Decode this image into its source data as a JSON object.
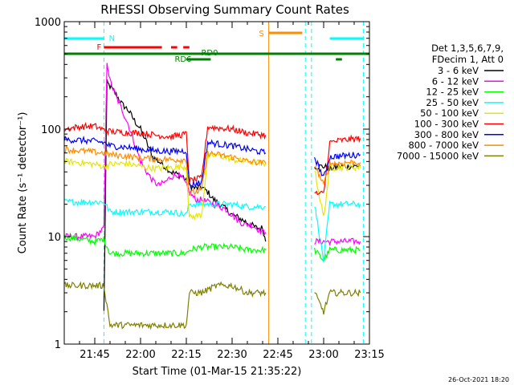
{
  "chart_data": {
    "type": "line",
    "title": "RHESSI Observing Summary Count Rates",
    "xlabel": "Start Time (01-Mar-15 21:35:22)",
    "ylabel": "Count Rate (s⁻¹ detector⁻¹)",
    "y_scale": "log",
    "ylim": [
      1,
      1000
    ],
    "xlim": [
      "21:35",
      "23:15"
    ],
    "xticks": [
      "21:45",
      "22:00",
      "22:15",
      "22:30",
      "22:45",
      "23:00",
      "23:15"
    ],
    "yticks": [
      "1",
      "10",
      "100",
      "1000"
    ],
    "footer": "26-Oct-2021 18:20",
    "legend": {
      "placement": "right",
      "header": [
        "Det 1,3,5,6,7,9,",
        "FDecim 1, Att 0"
      ],
      "entries": [
        {
          "label": "3 - 6 keV",
          "color": "#000000"
        },
        {
          "label": "6 - 12 keV",
          "color": "#ff00ff"
        },
        {
          "label": "12 - 25 keV",
          "color": "#00ff00"
        },
        {
          "label": "25 - 50 keV",
          "color": "#00ffff"
        },
        {
          "label": "50 - 100 keV",
          "color": "#e6e600"
        },
        {
          "label": "100 - 300 keV",
          "color": "#ff0000"
        },
        {
          "label": "300 - 800 keV",
          "color": "#0000ff"
        },
        {
          "label": "800 - 7000 keV",
          "color": "#ff8c00"
        },
        {
          "label": "7000 - 15000 keV",
          "color": "#808000"
        }
      ]
    },
    "flag_bars": [
      {
        "label": "N",
        "color": "#00ffff",
        "segments": [
          [
            "21:35",
            "21:48"
          ],
          [
            "23:02",
            "23:13"
          ]
        ]
      },
      {
        "label": "F",
        "color": "#ff0000",
        "segments": [
          [
            "21:48",
            "22:07"
          ],
          [
            "22:10",
            "22:12"
          ],
          [
            "22:14",
            "22:16"
          ]
        ]
      },
      {
        "label": "S",
        "color": "#ff8c00",
        "segments": [
          [
            "22:42",
            "22:53"
          ]
        ]
      },
      {
        "label": "RD0",
        "color": "#008000",
        "segments": [
          [
            "21:35",
            "23:15"
          ]
        ]
      },
      {
        "label": "RD6",
        "color": "#008000",
        "segments": [
          [
            "22:15",
            "22:23"
          ],
          [
            "23:04",
            "23:06"
          ]
        ]
      }
    ],
    "vertical_markers": [
      {
        "time": "21:35",
        "color": "#00ffff",
        "style": "dashed"
      },
      {
        "time": "21:48",
        "color": "#00ffff",
        "style": "dashed"
      },
      {
        "time": "22:42",
        "color": "#ff8c00",
        "style": "solid"
      },
      {
        "time": "22:54",
        "color": "#00ffff",
        "style": "dashed"
      },
      {
        "time": "22:56",
        "color": "#00ffff",
        "style": "dashed"
      },
      {
        "time": "23:13",
        "color": "#00ffff",
        "style": "dashed"
      }
    ],
    "gap": [
      "22:42",
      "22:56"
    ],
    "series": [
      {
        "name": "3 - 6 keV",
        "color": "#000000",
        "x": [
          "21:48",
          "21:49",
          "21:50",
          "21:52",
          "21:54",
          "21:56",
          "21:58",
          "22:00",
          "22:02",
          "22:04",
          "22:06",
          "22:08",
          "22:10",
          "22:12",
          "22:14",
          "22:16",
          "22:18",
          "22:20",
          "22:22",
          "22:24",
          "22:26",
          "22:28",
          "22:30",
          "22:32",
          "22:34",
          "22:36",
          "22:38",
          "22:40",
          "22:41",
          "22:57",
          "23:00",
          "23:02",
          "23:04",
          "23:06",
          "23:08",
          "23:10",
          "23:12"
        ],
        "y": [
          2,
          270,
          250,
          210,
          170,
          150,
          120,
          100,
          75,
          55,
          50,
          45,
          40,
          38,
          36,
          30,
          28,
          29,
          26,
          22,
          20,
          18,
          16,
          15,
          14,
          13,
          12,
          12,
          9,
          45,
          45,
          43,
          44,
          45,
          45,
          45,
          46
        ]
      },
      {
        "name": "6 - 12 keV",
        "color": "#ff00ff",
        "x": [
          "21:35",
          "21:40",
          "21:45",
          "21:48",
          "21:49",
          "21:50",
          "21:52",
          "21:54",
          "21:56",
          "21:58",
          "22:00",
          "22:02",
          "22:04",
          "22:06",
          "22:08",
          "22:10",
          "22:12",
          "22:14",
          "22:16",
          "22:18",
          "22:20",
          "22:22",
          "22:24",
          "22:26",
          "22:28",
          "22:30",
          "22:32",
          "22:34",
          "22:36",
          "22:38",
          "22:40",
          "22:41",
          "22:57",
          "23:00",
          "23:02",
          "23:04",
          "23:06",
          "23:08",
          "23:10",
          "23:12"
        ],
        "y": [
          10,
          10,
          10,
          12,
          430,
          280,
          200,
          150,
          110,
          75,
          50,
          40,
          33,
          30,
          32,
          36,
          38,
          34,
          26,
          22,
          22,
          21,
          20,
          19,
          18,
          16,
          14,
          13,
          13,
          12,
          11,
          11,
          9,
          9,
          9,
          9,
          9,
          9,
          9,
          9
        ]
      },
      {
        "name": "12 - 25 keV",
        "color": "#00ff00",
        "x": [
          "21:35",
          "21:40",
          "21:45",
          "21:48",
          "21:50",
          "21:55",
          "22:00",
          "22:05",
          "22:10",
          "22:15",
          "22:16",
          "22:20",
          "22:25",
          "22:30",
          "22:35",
          "22:41",
          "22:57",
          "23:00",
          "23:02",
          "23:05",
          "23:08",
          "23:12"
        ],
        "y": [
          10,
          9.5,
          9,
          9.5,
          7,
          7,
          7,
          7,
          7,
          7,
          7.5,
          8,
          8,
          8,
          7.5,
          7.5,
          7.5,
          6,
          7.5,
          7.5,
          7.5,
          7.5
        ]
      },
      {
        "name": "25 - 50 keV",
        "color": "#00ffff",
        "x": [
          "21:35",
          "21:40",
          "21:45",
          "21:48",
          "21:50",
          "21:55",
          "22:00",
          "22:05",
          "22:10",
          "22:15",
          "22:16",
          "22:20",
          "22:25",
          "22:30",
          "22:35",
          "22:41",
          "22:57",
          "23:00",
          "23:02",
          "23:05",
          "23:08",
          "23:12"
        ],
        "y": [
          21,
          21,
          21,
          21,
          17,
          17,
          17,
          17,
          17,
          16,
          20,
          20,
          20,
          20,
          19,
          19,
          20,
          6,
          20,
          20,
          20,
          20
        ]
      },
      {
        "name": "50 - 100 keV",
        "color": "#e6e600",
        "x": [
          "21:35",
          "21:40",
          "21:45",
          "21:48",
          "21:50",
          "21:55",
          "22:00",
          "22:05",
          "22:10",
          "22:15",
          "22:16",
          "22:20",
          "22:22",
          "22:25",
          "22:30",
          "22:35",
          "22:41",
          "22:57",
          "23:00",
          "23:02",
          "23:05",
          "23:08",
          "23:12"
        ],
        "y": [
          50,
          49,
          47,
          45,
          47,
          48,
          45,
          43,
          44,
          45,
          15,
          16,
          55,
          58,
          52,
          50,
          48,
          42,
          15,
          44,
          44,
          44,
          44
        ]
      },
      {
        "name": "100 - 300 keV",
        "color": "#ff0000",
        "x": [
          "21:35",
          "21:40",
          "21:45",
          "21:48",
          "21:50",
          "21:55",
          "22:00",
          "22:05",
          "22:10",
          "22:15",
          "22:16",
          "22:20",
          "22:22",
          "22:25",
          "22:30",
          "22:35",
          "22:41",
          "22:57",
          "23:00",
          "23:02",
          "23:05",
          "23:08",
          "23:12"
        ],
        "y": [
          100,
          105,
          107,
          98,
          95,
          93,
          92,
          88,
          85,
          90,
          33,
          35,
          105,
          103,
          100,
          92,
          88,
          25,
          25,
          75,
          78,
          80,
          82
        ]
      },
      {
        "name": "300 - 800 keV",
        "color": "#0000ff",
        "x": [
          "21:35",
          "21:40",
          "21:45",
          "21:48",
          "21:50",
          "21:55",
          "22:00",
          "22:05",
          "22:10",
          "22:15",
          "22:16",
          "22:20",
          "22:22",
          "22:25",
          "22:30",
          "22:35",
          "22:41",
          "22:57",
          "23:00",
          "23:02",
          "23:05",
          "23:08",
          "23:12"
        ],
        "y": [
          80,
          79,
          77,
          75,
          70,
          68,
          65,
          63,
          62,
          63,
          30,
          32,
          75,
          73,
          70,
          65,
          60,
          55,
          35,
          55,
          56,
          57,
          58
        ]
      },
      {
        "name": "800 - 7000 keV",
        "color": "#ff8c00",
        "x": [
          "21:35",
          "21:40",
          "21:45",
          "21:48",
          "21:50",
          "21:55",
          "22:00",
          "22:05",
          "22:10",
          "22:15",
          "22:16",
          "22:20",
          "22:22",
          "22:25",
          "22:30",
          "22:35",
          "22:41",
          "22:57",
          "23:00",
          "23:02",
          "23:05",
          "23:08",
          "23:12"
        ],
        "y": [
          65,
          63,
          61,
          60,
          58,
          56,
          54,
          53,
          52,
          52,
          25,
          27,
          60,
          58,
          55,
          50,
          48,
          47,
          30,
          48,
          48,
          49,
          49
        ]
      },
      {
        "name": "7000 - 15000 keV",
        "color": "#808000",
        "x": [
          "21:35",
          "21:40",
          "21:45",
          "21:48",
          "21:50",
          "21:55",
          "22:00",
          "22:05",
          "22:10",
          "22:15",
          "22:16",
          "22:20",
          "22:25",
          "22:30",
          "22:35",
          "22:41",
          "22:57",
          "23:00",
          "23:02",
          "23:05",
          "23:08",
          "23:12"
        ],
        "y": [
          3.5,
          3.5,
          3.5,
          3.5,
          1.5,
          1.5,
          1.5,
          1.5,
          1.5,
          1.5,
          3,
          3,
          3.5,
          3.5,
          3,
          3,
          3,
          2,
          3,
          3,
          3,
          3
        ]
      }
    ]
  }
}
